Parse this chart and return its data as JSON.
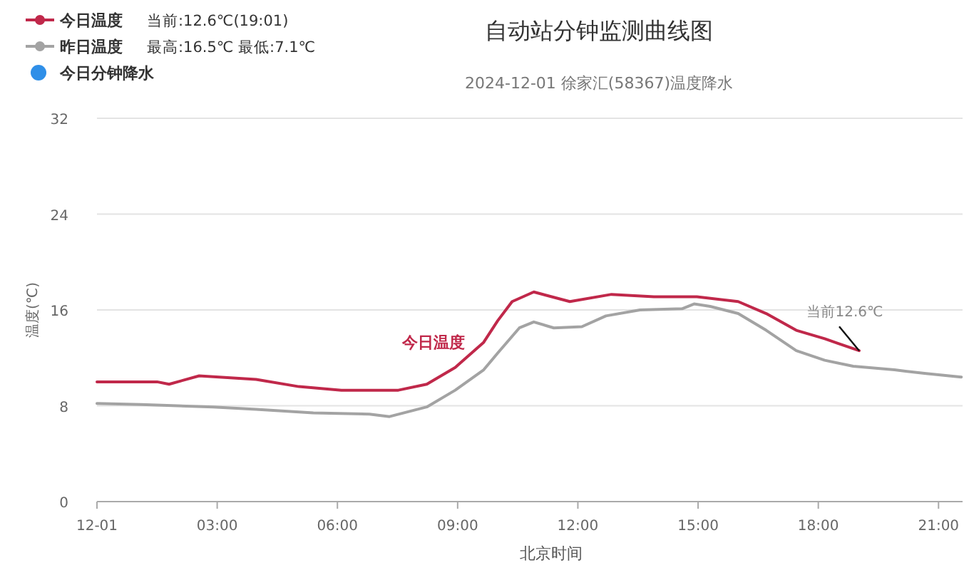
{
  "chart_data": {
    "type": "line",
    "title": "自动站分钟监测曲线图",
    "subtitle": "2024-12-01 徐家汇(58367)温度降水",
    "xlabel": "北京时间",
    "ylabel": "温度(℃)",
    "xlim": [
      0,
      21.6
    ],
    "ylim": [
      0,
      32
    ],
    "yticks": [
      0,
      8,
      16,
      24,
      32
    ],
    "xticks": [
      {
        "value": 0,
        "label": "12-01"
      },
      {
        "value": 3,
        "label": "03:00"
      },
      {
        "value": 6,
        "label": "06:00"
      },
      {
        "value": 9,
        "label": "09:00"
      },
      {
        "value": 12,
        "label": "12:00"
      },
      {
        "value": 15,
        "label": "15:00"
      },
      {
        "value": 18,
        "label": "18:00"
      },
      {
        "value": 21,
        "label": "21:00"
      }
    ],
    "grid": "y",
    "legend": "top left",
    "series": [
      {
        "name": "今日温度",
        "color": "#c0284a",
        "x": [
          0,
          1.5,
          1.8,
          2.55,
          3.97,
          5.04,
          6.1,
          7.52,
          8.23,
          8.94,
          9.65,
          10.0,
          10.36,
          10.9,
          11.8,
          12.84,
          13.9,
          14.97,
          16.0,
          16.7,
          17.45,
          18.16,
          18.5,
          19.02
        ],
        "values": [
          10.0,
          10.0,
          9.8,
          10.5,
          10.2,
          9.6,
          9.3,
          9.3,
          9.8,
          11.2,
          13.3,
          15.1,
          16.7,
          17.5,
          16.7,
          17.3,
          17.1,
          17.1,
          16.7,
          15.7,
          14.3,
          13.6,
          13.2,
          12.6
        ]
      },
      {
        "name": "昨日温度",
        "color": "#a3a3a3",
        "x": [
          0,
          1.1,
          2.9,
          3.97,
          5.4,
          6.8,
          7.3,
          8.23,
          8.94,
          9.65,
          10.0,
          10.54,
          10.9,
          11.4,
          12.1,
          12.7,
          13.55,
          14.6,
          14.9,
          15.3,
          16.0,
          16.7,
          17.45,
          18.16,
          18.87,
          19.9,
          20.65,
          21.57
        ],
        "values": [
          8.2,
          8.1,
          7.9,
          7.7,
          7.4,
          7.3,
          7.1,
          7.9,
          9.3,
          11.0,
          12.4,
          14.5,
          15.0,
          14.5,
          14.6,
          15.5,
          16.0,
          16.1,
          16.5,
          16.3,
          15.7,
          14.3,
          12.6,
          11.8,
          11.3,
          11.0,
          10.7,
          10.4
        ]
      },
      {
        "name": "今日分钟降水",
        "color": "#2f8fe8",
        "type": "bar"
      }
    ],
    "annotations": [
      "当前:12.6℃(19:01)",
      "最高:16.5℃ 最低:7.1℃",
      {
        "text": "当前12.6℃",
        "x": 19.02,
        "y": 12.6
      }
    ]
  }
}
